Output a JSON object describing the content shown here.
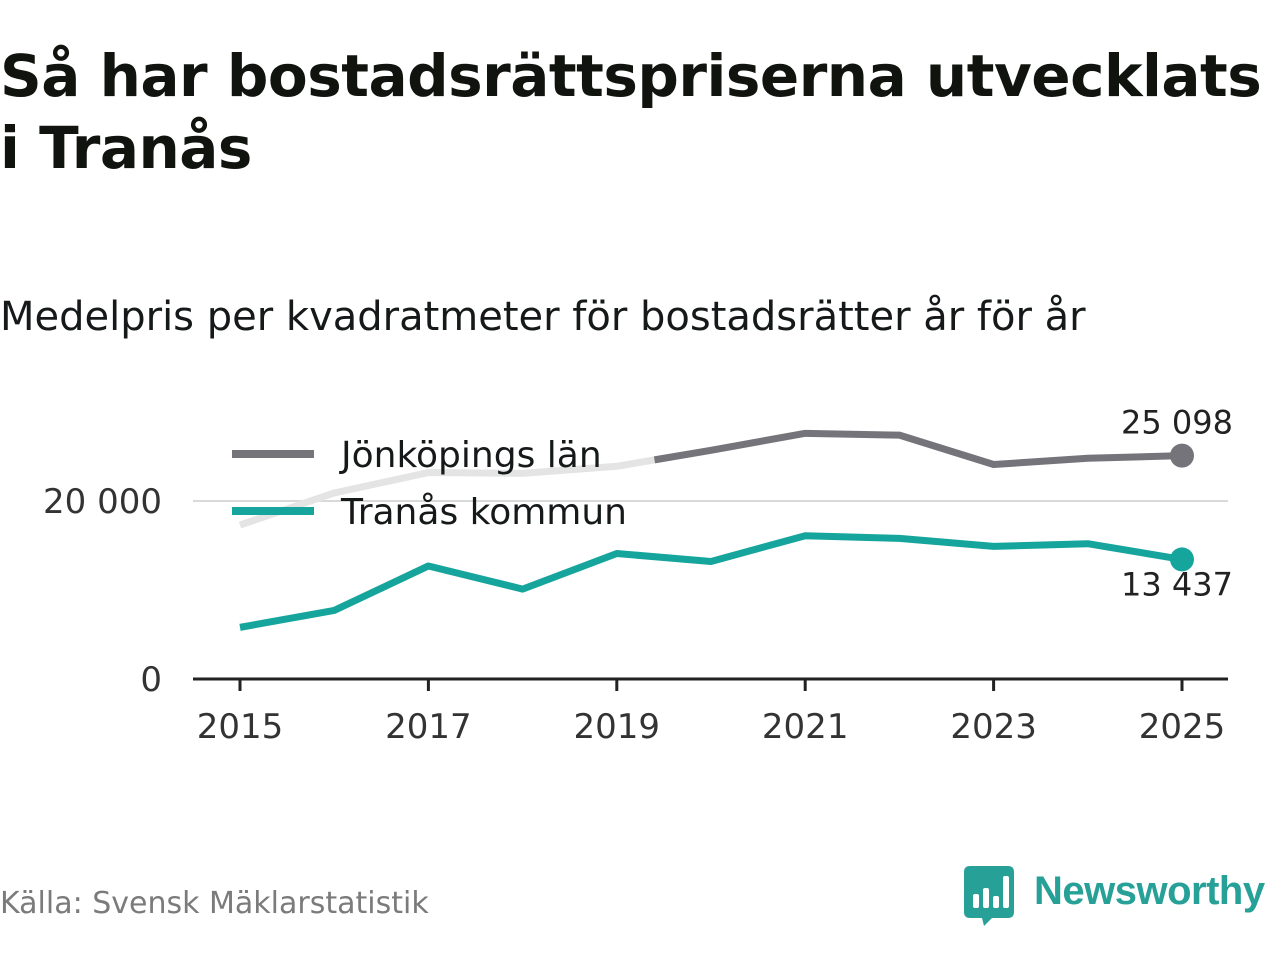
{
  "title": "Så har bostadsrättspriserna utvecklats i Tranås",
  "subtitle": "Medelpris per kvadratmeter för bostadsrätter år för år",
  "source": "Källa: Svensk Mäklarstatistik",
  "brand": "Newsworthy",
  "colors": {
    "county": "#75747b",
    "municipality": "#15a59c",
    "faded": "#e4e4e4",
    "grid": "#d9d9d9",
    "axis": "#222222",
    "brand": "#27a197"
  },
  "chart_data": {
    "type": "line",
    "title": "Så har bostadsrättspriserna utvecklats i Tranås",
    "subtitle": "Medelpris per kvadratmeter för bostadsrätter år för år",
    "x": [
      2015,
      2016,
      2017,
      2018,
      2019,
      2020,
      2021,
      2022,
      2023,
      2024,
      2025
    ],
    "series": [
      {
        "name": "Jönköpings län",
        "key": "county",
        "values": [
          17300,
          20900,
          23200,
          23100,
          23900,
          25700,
          27600,
          27400,
          24100,
          24800,
          25098
        ]
      },
      {
        "name": "Tranås kommun",
        "key": "municipality",
        "values": [
          5800,
          7700,
          12700,
          10100,
          14100,
          13200,
          16100,
          15800,
          14900,
          15200,
          13437
        ]
      }
    ],
    "end_labels": {
      "county": "25 098",
      "municipality": "13 437"
    },
    "ylim": [
      0,
      28000
    ],
    "yticks": [
      0,
      20000
    ],
    "ytick_labels": [
      "0",
      "20 000"
    ],
    "xticks": [
      2015,
      2017,
      2019,
      2021,
      2023,
      2025
    ],
    "xtick_labels": [
      "2015",
      "2017",
      "2019",
      "2021",
      "2023",
      "2025"
    ],
    "xlabel": "",
    "ylabel": "",
    "legend": "top-left"
  }
}
